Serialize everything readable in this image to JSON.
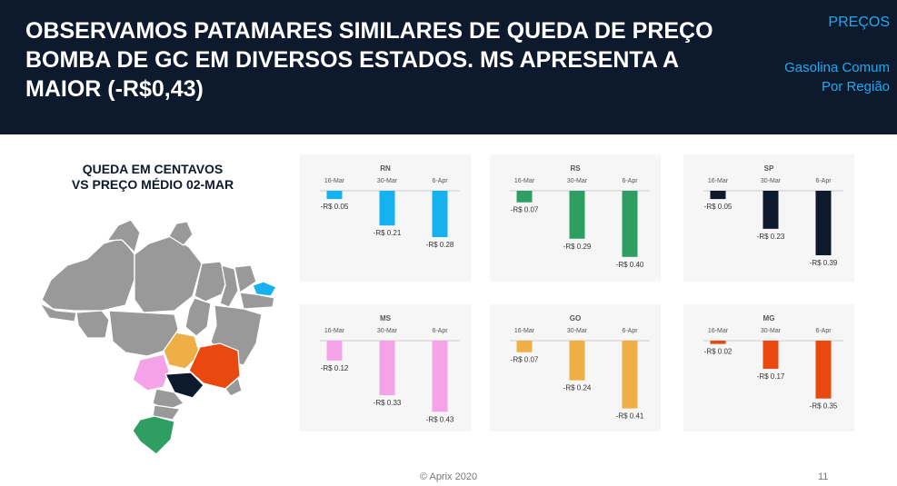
{
  "header": {
    "headline": "OBSERVAMOS PATAMARES SIMILARES DE QUEDA DE PREÇO BOMBA DE GC EM DIVERSOS ESTADOS. MS APRESENTA A MAIOR (-R$0,43)",
    "section_tag": "PREÇOS",
    "section_sub_1": "Gasolina Comum",
    "section_sub_2": "Por Região",
    "background": "#0d1a2e",
    "accent": "#1eaaf1"
  },
  "map": {
    "title_1": "QUEDA EM CENTAVOS",
    "title_2": "VS PREÇO MÉDIO 02-MAR",
    "base_color": "#999999",
    "highlighted_states": [
      {
        "state": "RN",
        "color": "#16b2ef"
      },
      {
        "state": "MS",
        "color": "#f5a3e8"
      },
      {
        "state": "GO",
        "color": "#eeb046"
      },
      {
        "state": "MG",
        "color": "#e9480f"
      },
      {
        "state": "SP",
        "color": "#0d1a2e"
      },
      {
        "state": "RS",
        "color": "#2e9e62"
      }
    ]
  },
  "chart_data": [
    {
      "type": "bar",
      "title": "RN",
      "categories": [
        "16-Mar",
        "30-Mar",
        "6-Apr"
      ],
      "values": [
        -0.05,
        -0.21,
        -0.28
      ],
      "labels": [
        "-R$ 0.05",
        "-R$ 0.21",
        "-R$ 0.28"
      ],
      "color": "#16b2ef"
    },
    {
      "type": "bar",
      "title": "RS",
      "categories": [
        "16-Mar",
        "30-Mar",
        "6-Apr"
      ],
      "values": [
        -0.07,
        -0.29,
        -0.4
      ],
      "labels": [
        "-R$ 0.07",
        "-R$ 0.29",
        "-R$ 0.40"
      ],
      "color": "#2e9e62"
    },
    {
      "type": "bar",
      "title": "SP",
      "categories": [
        "16-Mar",
        "30-Mar",
        "6-Apr"
      ],
      "values": [
        -0.05,
        -0.23,
        -0.39
      ],
      "labels": [
        "-R$ 0.05",
        "-R$ 0.23",
        "-R$ 0.39"
      ],
      "color": "#0d1a2e"
    },
    {
      "type": "bar",
      "title": "MS",
      "categories": [
        "16-Mar",
        "30-Mar",
        "6-Apr"
      ],
      "values": [
        -0.12,
        -0.33,
        -0.43
      ],
      "labels": [
        "-R$ 0.12",
        "-R$ 0.33",
        "-R$ 0.43"
      ],
      "color": "#f5a3e8"
    },
    {
      "type": "bar",
      "title": "GO",
      "categories": [
        "16-Mar",
        "30-Mar",
        "6-Apr"
      ],
      "values": [
        -0.07,
        -0.24,
        -0.41
      ],
      "labels": [
        "-R$ 0.07",
        "-R$ 0.24",
        "-R$ 0.41"
      ],
      "color": "#eeb046"
    },
    {
      "type": "bar",
      "title": "MG",
      "categories": [
        "16-Mar",
        "30-Mar",
        "6-Apr"
      ],
      "values": [
        -0.02,
        -0.17,
        -0.35
      ],
      "labels": [
        "-R$ 0.02",
        "-R$ 0.17",
        "-R$ 0.35"
      ],
      "color": "#e9480f"
    }
  ],
  "footer": {
    "copyright": "© Aprix 2020",
    "page_number": "11"
  }
}
